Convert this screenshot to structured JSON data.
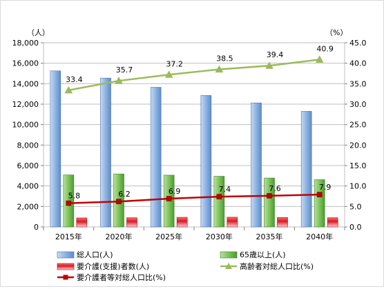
{
  "chart_data": {
    "type": "bar",
    "categories": [
      "2015年",
      "2020年",
      "2025年",
      "2030年",
      "2035年",
      "2040年"
    ],
    "y_left": {
      "unit": "（人）",
      "range": [
        0,
        18000
      ],
      "ticks": [
        "0",
        "2,000",
        "4,000",
        "6,000",
        "8,000",
        "10,000",
        "12,000",
        "14,000",
        "16,000",
        "18,000"
      ]
    },
    "y_right": {
      "unit": "（%）",
      "range": [
        0,
        45
      ],
      "ticks": [
        "0.0",
        "5.0",
        "10.0",
        "15.0",
        "20.0",
        "25.0",
        "30.0",
        "35.0",
        "40.0",
        "45.0"
      ]
    },
    "series": [
      {
        "name": "総人口(人)",
        "kind": "bar",
        "axis": "left",
        "color": "#8db3e2",
        "values": [
          15250,
          14550,
          13650,
          12850,
          12120,
          11300
        ]
      },
      {
        "name": "65歳以上(人)",
        "kind": "bar",
        "axis": "left",
        "color": "#7cc45a",
        "values": [
          5080,
          5180,
          5060,
          4950,
          4780,
          4620
        ]
      },
      {
        "name": "要介護(支援)者数(人)",
        "kind": "bar",
        "axis": "left",
        "color": "#e0303a",
        "values": [
          880,
          900,
          940,
          950,
          920,
          900
        ]
      },
      {
        "name": "高齢者対総人口比(%)",
        "kind": "line",
        "axis": "right",
        "color": "#9bbb59",
        "marker": "triangle",
        "values": [
          33.4,
          35.7,
          37.2,
          38.5,
          39.4,
          40.9
        ],
        "labels": [
          "33.4",
          "35.7",
          "37.2",
          "38.5",
          "39.4",
          "40.9"
        ]
      },
      {
        "name": "要介護者等対総人口比(%)",
        "kind": "line",
        "axis": "right",
        "color": "#c00000",
        "marker": "square",
        "values": [
          5.8,
          6.2,
          6.9,
          7.4,
          7.6,
          7.9
        ],
        "labels": [
          "5.8",
          "6.2",
          "6.9",
          "7.4",
          "7.6",
          "7.9"
        ]
      }
    ],
    "grid": true,
    "legend": "bottom"
  }
}
